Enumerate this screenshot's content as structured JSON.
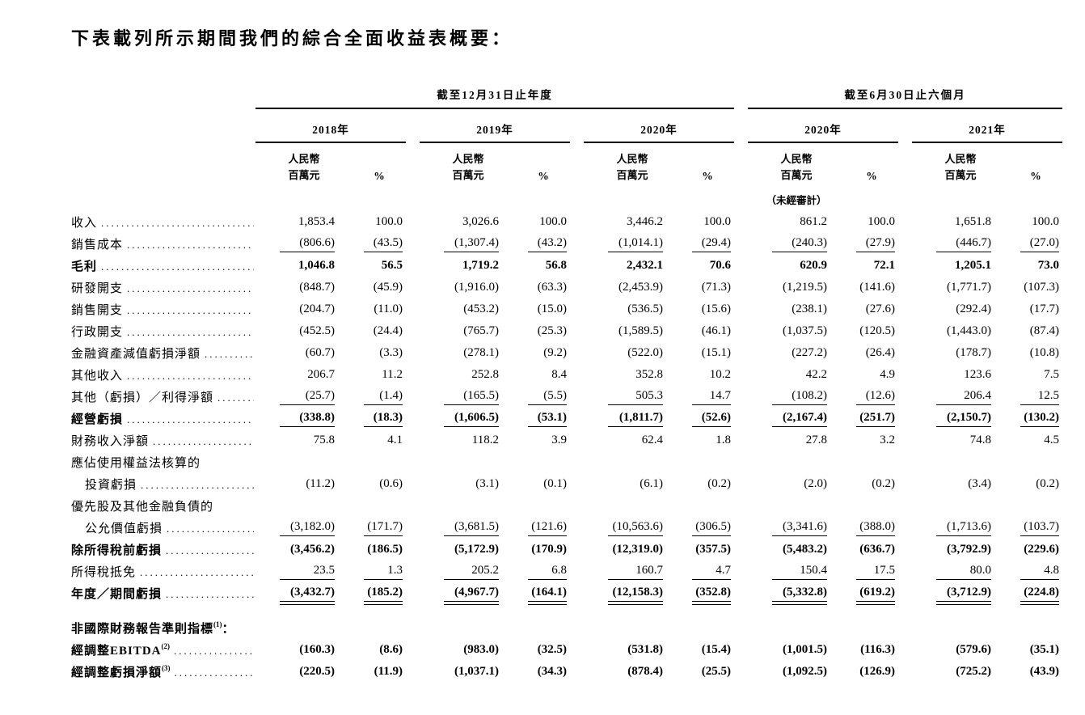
{
  "title": "下表載列所示期間我們的綜合全面收益表概要：",
  "header": {
    "groups": [
      {
        "label": "截至12月31日止年度",
        "span_years": 3
      },
      {
        "label": "截至6月30日止六個月",
        "span_years": 2
      }
    ],
    "years": [
      "2018年",
      "2019年",
      "2020年",
      "2020年",
      "2021年"
    ],
    "unit_line1": "人民幣",
    "unit_line2": "百萬元",
    "percent_symbol": "%",
    "unaudited": "（未經審計）"
  },
  "rows": [
    {
      "label": "收入",
      "values": [
        "1,853.4",
        "100.0",
        "3,026.6",
        "100.0",
        "3,446.2",
        "100.0",
        "861.2",
        "100.0",
        "1,651.8",
        "100.0"
      ]
    },
    {
      "label": "銷售成本",
      "u": "s",
      "values": [
        "(806.6)",
        "(43.5)",
        "(1,307.4)",
        "(43.2)",
        "(1,014.1)",
        "(29.4)",
        "(240.3)",
        "(27.9)",
        "(446.7)",
        "(27.0)"
      ]
    },
    {
      "label": "毛利",
      "bold": true,
      "values": [
        "1,046.8",
        "56.5",
        "1,719.2",
        "56.8",
        "2,432.1",
        "70.6",
        "620.9",
        "72.1",
        "1,205.1",
        "73.0"
      ]
    },
    {
      "label": "研發開支",
      "values": [
        "(848.7)",
        "(45.9)",
        "(1,916.0)",
        "(63.3)",
        "(2,453.9)",
        "(71.3)",
        "(1,219.5)",
        "(141.6)",
        "(1,771.7)",
        "(107.3)"
      ]
    },
    {
      "label": "銷售開支",
      "values": [
        "(204.7)",
        "(11.0)",
        "(453.2)",
        "(15.0)",
        "(536.5)",
        "(15.6)",
        "(238.1)",
        "(27.6)",
        "(292.4)",
        "(17.7)"
      ]
    },
    {
      "label": "行政開支",
      "values": [
        "(452.5)",
        "(24.4)",
        "(765.7)",
        "(25.3)",
        "(1,589.5)",
        "(46.1)",
        "(1,037.5)",
        "(120.5)",
        "(1,443.0)",
        "(87.4)"
      ]
    },
    {
      "label": "金融資產減值虧損淨額",
      "values": [
        "(60.7)",
        "(3.3)",
        "(278.1)",
        "(9.2)",
        "(522.0)",
        "(15.1)",
        "(227.2)",
        "(26.4)",
        "(178.7)",
        "(10.8)"
      ]
    },
    {
      "label": "其他收入",
      "values": [
        "206.7",
        "11.2",
        "252.8",
        "8.4",
        "352.8",
        "10.2",
        "42.2",
        "4.9",
        "123.6",
        "7.5"
      ]
    },
    {
      "label": "其他（虧損）／利得淨額",
      "u": "s",
      "values": [
        "(25.7)",
        "(1.4)",
        "(165.5)",
        "(5.5)",
        "505.3",
        "14.7",
        "(108.2)",
        "(12.6)",
        "206.4",
        "12.5"
      ]
    },
    {
      "label": "經營虧損",
      "bold": true,
      "u": "s",
      "values": [
        "(338.8)",
        "(18.3)",
        "(1,606.5)",
        "(53.1)",
        "(1,811.7)",
        "(52.6)",
        "(2,167.4)",
        "(251.7)",
        "(2,150.7)",
        "(130.2)"
      ]
    },
    {
      "label": "財務收入淨額",
      "values": [
        "75.8",
        "4.1",
        "118.2",
        "3.9",
        "62.4",
        "1.8",
        "27.8",
        "3.2",
        "74.8",
        "4.5"
      ]
    },
    {
      "label": "應佔使用權益法核算的",
      "label_only": true
    },
    {
      "label": "投資虧損",
      "indent": true,
      "values": [
        "(11.2)",
        "(0.6)",
        "(3.1)",
        "(0.1)",
        "(6.1)",
        "(0.2)",
        "(2.0)",
        "(0.2)",
        "(3.4)",
        "(0.2)"
      ]
    },
    {
      "label": "優先股及其他金融負債的",
      "label_only": true
    },
    {
      "label": "公允價值虧損",
      "indent": true,
      "u": "s",
      "values": [
        "(3,182.0)",
        "(171.7)",
        "(3,681.5)",
        "(121.6)",
        "(10,563.6)",
        "(306.5)",
        "(3,341.6)",
        "(388.0)",
        "(1,713.6)",
        "(103.7)"
      ]
    },
    {
      "label": "除所得稅前虧損",
      "bold": true,
      "values": [
        "(3,456.2)",
        "(186.5)",
        "(5,172.9)",
        "(170.9)",
        "(12,319.0)",
        "(357.5)",
        "(5,483.2)",
        "(636.7)",
        "(3,792.9)",
        "(229.6)"
      ]
    },
    {
      "label": "所得稅抵免",
      "u": "s",
      "values": [
        "23.5",
        "1.3",
        "205.2",
        "6.8",
        "160.7",
        "4.7",
        "150.4",
        "17.5",
        "80.0",
        "4.8"
      ]
    },
    {
      "label": "年度／期間虧損",
      "bold": true,
      "u": "d",
      "values": [
        "(3,432.7)",
        "(185.2)",
        "(4,967.7)",
        "(164.1)",
        "(12,158.3)",
        "(352.8)",
        "(5,332.8)",
        "(619.2)",
        "(3,712.9)",
        "(224.8)"
      ]
    },
    {
      "label": "非國際財務報告準則指標",
      "sup": "(1)",
      "tail": "：",
      "bold": true,
      "label_only": true,
      "gap": true
    },
    {
      "label": "經調整EBITDA",
      "sup": "(2)",
      "bold": true,
      "values": [
        "(160.3)",
        "(8.6)",
        "(983.0)",
        "(32.5)",
        "(531.8)",
        "(15.4)",
        "(1,001.5)",
        "(116.3)",
        "(579.6)",
        "(35.1)"
      ]
    },
    {
      "label": "經調整虧損淨額",
      "sup": "(3)",
      "bold": true,
      "values": [
        "(220.5)",
        "(11.9)",
        "(1,037.1)",
        "(34.3)",
        "(878.4)",
        "(25.5)",
        "(1,092.5)",
        "(126.9)",
        "(725.2)",
        "(43.9)"
      ]
    }
  ]
}
